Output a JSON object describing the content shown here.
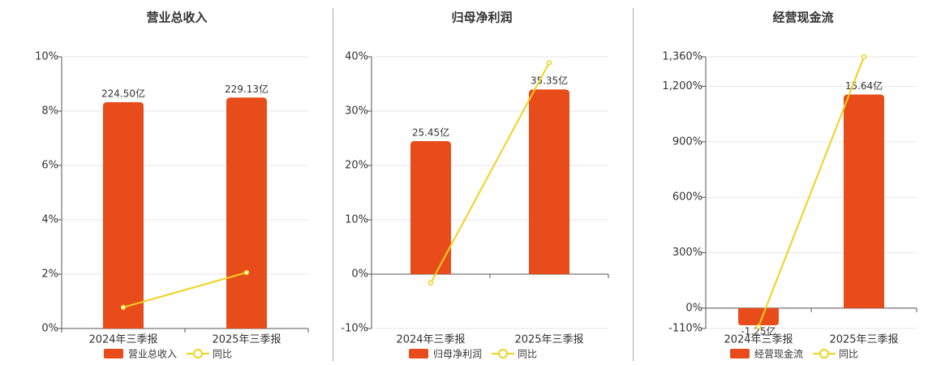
{
  "chart_data": [
    {
      "type": "bar",
      "title": "营业总收入",
      "categories": [
        "2024年三季报",
        "2025年三季报"
      ],
      "series": [
        {
          "name": "营业总收入",
          "type": "bar",
          "color": "#e84c1a",
          "values": [
            224.5,
            229.13
          ],
          "value_labels": [
            "224.50亿",
            "229.13亿"
          ]
        },
        {
          "name": "同比",
          "type": "line",
          "color": "#f2d11c",
          "values": [
            0.78,
            2.06
          ]
        }
      ],
      "ylim": [
        0,
        10
      ],
      "yticks": [
        {
          "value": 0,
          "label": "0%"
        },
        {
          "value": 2,
          "label": "2%"
        },
        {
          "value": 4,
          "label": "4%"
        },
        {
          "value": 6,
          "label": "6%"
        },
        {
          "value": 8,
          "label": "8%"
        },
        {
          "value": 10,
          "label": "10%"
        }
      ],
      "grid": true
    },
    {
      "type": "bar",
      "title": "归母净利润",
      "categories": [
        "2024年三季报",
        "2025年三季报"
      ],
      "series": [
        {
          "name": "归母净利润",
          "type": "bar",
          "color": "#e84c1a",
          "values": [
            25.45,
            35.35
          ],
          "value_labels": [
            "25.45亿",
            "35.35亿"
          ]
        },
        {
          "name": "同比",
          "type": "line",
          "color": "#f2d11c",
          "values": [
            -1.6,
            38.9
          ]
        }
      ],
      "ylim": [
        -10,
        40
      ],
      "yticks": [
        {
          "value": -10,
          "label": "-10%"
        },
        {
          "value": 0,
          "label": "0%"
        },
        {
          "value": 10,
          "label": "10%"
        },
        {
          "value": 20,
          "label": "20%"
        },
        {
          "value": 30,
          "label": "30%"
        },
        {
          "value": 40,
          "label": "40%"
        }
      ],
      "grid": true
    },
    {
      "type": "bar",
      "title": "经营现金流",
      "categories": [
        "2024年三季报",
        "2025年三季报"
      ],
      "series": [
        {
          "name": "经营现金流",
          "type": "bar",
          "color": "#e84c1a",
          "values": [
            -1.25,
            15.64
          ],
          "value_labels": [
            "-1.25亿",
            "15.64亿"
          ]
        },
        {
          "name": "同比",
          "type": "line",
          "color": "#f2d11c",
          "values": [
            -100,
            1360
          ]
        }
      ],
      "ylim": [
        -110,
        1360
      ],
      "yticks": [
        {
          "value": -110,
          "label": "-110%"
        },
        {
          "value": 0,
          "label": "0%"
        },
        {
          "value": 300,
          "label": "300%"
        },
        {
          "value": 600,
          "label": "600%"
        },
        {
          "value": 900,
          "label": "900%"
        },
        {
          "value": 1200,
          "label": "1,200%"
        },
        {
          "value": 1360,
          "label": "1,360%"
        }
      ],
      "grid": true
    }
  ]
}
